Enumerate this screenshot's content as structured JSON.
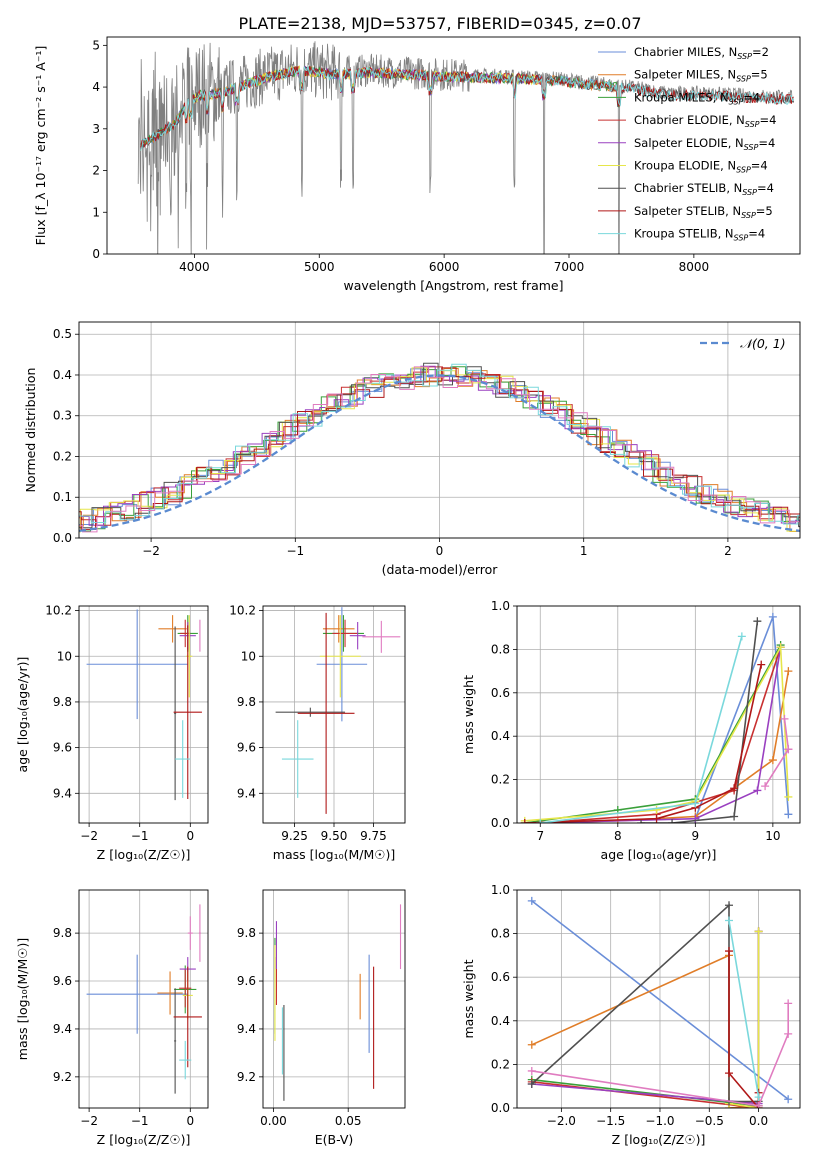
{
  "title": "PLATE=2138, MJD=53757, FIBERID=0345, z=0.07",
  "colors": {
    "chabrier_miles": "#6a8ed8",
    "salpeter_miles": "#e07d28",
    "kroupa_miles": "#3aa03a",
    "chabrier_elodie": "#c83030",
    "salpeter_elodie": "#9a40c0",
    "kroupa_elodie": "#e6e64a",
    "chabrier_stelib": "#505050",
    "salpeter_stelib": "#b01818",
    "kroupa_stelib": "#7ad8dc",
    "normal": "#5a8ad0",
    "pink": "#e07cc0",
    "data_gray": "#808080",
    "grid": "#b0b0b0"
  },
  "chart_data": [
    {
      "type": "line",
      "id": "spectrum",
      "xlabel": "wavelength [Angstrom, rest frame]",
      "ylabel": "Flux [f_λ 10⁻¹⁷ erg cm⁻² s⁻¹ A⁻¹]",
      "xlim": [
        3300,
        8850
      ],
      "ylim": [
        0,
        5.2
      ],
      "xticks": [
        4000,
        5000,
        6000,
        7000,
        8000
      ],
      "yticks": [
        0,
        1,
        2,
        3,
        4,
        5
      ],
      "grid": false,
      "legend_position": "top-right",
      "legend": [
        {
          "label": "Chabrier MILES, N",
          "sub": "SSP",
          "tail": "=2",
          "color": "chabrier_miles"
        },
        {
          "label": "Salpeter MILES, N",
          "sub": "SSP",
          "tail": "=5",
          "color": "salpeter_miles"
        },
        {
          "label": "Kroupa MILES, N",
          "sub": "SSP",
          "tail": "=4",
          "color": "kroupa_miles"
        },
        {
          "label": "Chabrier ELODIE, N",
          "sub": "SSP",
          "tail": "=4",
          "color": "chabrier_elodie"
        },
        {
          "label": "Salpeter ELODIE, N",
          "sub": "SSP",
          "tail": "=4",
          "color": "salpeter_elodie"
        },
        {
          "label": "Kroupa ELODIE, N",
          "sub": "SSP",
          "tail": "=4",
          "color": "kroupa_elodie"
        },
        {
          "label": "Chabrier STELIB, N",
          "sub": "SSP",
          "tail": "=4",
          "color": "chabrier_stelib"
        },
        {
          "label": "Salpeter STELIB, N",
          "sub": "SSP",
          "tail": "=5",
          "color": "salpeter_stelib"
        },
        {
          "label": "Kroupa STELIB, N",
          "sub": "SSP",
          "tail": "=4",
          "color": "kroupa_stelib"
        }
      ],
      "continuum": {
        "x": [
          3550,
          3650,
          3750,
          3850,
          3950,
          4050,
          4200,
          4400,
          4600,
          4850,
          5100,
          5400,
          5700,
          6000,
          6300,
          6600,
          6900,
          7200,
          7500,
          7800,
          8100,
          8400,
          8800
        ],
        "y": [
          2.6,
          2.8,
          3.0,
          3.2,
          3.7,
          3.85,
          3.9,
          4.1,
          4.3,
          4.45,
          4.35,
          4.4,
          4.35,
          4.3,
          4.28,
          4.25,
          4.2,
          4.1,
          4.0,
          3.85,
          3.85,
          3.8,
          3.75
        ]
      },
      "absorption_lines": [
        3934,
        3969,
        4102,
        4227,
        4340,
        4861,
        5175,
        5270,
        5890,
        6563,
        6800,
        7400
      ]
    },
    {
      "type": "line",
      "id": "residuals",
      "xlabel": "(data-model)/error",
      "ylabel": "Normed distribution",
      "xlim": [
        -2.5,
        2.5
      ],
      "ylim": [
        0,
        0.53
      ],
      "xticks": [
        -2,
        -1,
        0,
        1,
        2
      ],
      "yticks": [
        0.0,
        0.1,
        0.2,
        0.3,
        0.4,
        0.5
      ],
      "grid": true,
      "legend_position": "top-right",
      "legend": [
        {
          "label": "𝒩(0, 1)",
          "color": "normal",
          "style": "dashed"
        }
      ],
      "bin_width": 0.1,
      "series": [
        {
          "color": "chabrier_miles",
          "offset": 0.0
        },
        {
          "color": "salpeter_miles",
          "offset": 0.03
        },
        {
          "color": "kroupa_miles",
          "offset": -0.02
        },
        {
          "color": "chabrier_elodie",
          "offset": 0.02
        },
        {
          "color": "salpeter_elodie",
          "offset": -0.03
        },
        {
          "color": "kroupa_elodie",
          "offset": 0.01
        },
        {
          "color": "chabrier_stelib",
          "offset": -0.01
        },
        {
          "color": "salpeter_stelib",
          "offset": 0.015
        },
        {
          "color": "kroupa_stelib",
          "offset": -0.015
        },
        {
          "color": "pink",
          "offset": 0.025
        }
      ]
    },
    {
      "type": "scatter",
      "id": "age_vs_Z",
      "xlabel": "Z [log₁₀(Z/Z☉)]",
      "ylabel": "age  [log₁₀(age/yr)]",
      "xlim": [
        -2.2,
        0.35
      ],
      "ylim": [
        9.27,
        10.22
      ],
      "xticks": [
        -2,
        -1,
        0
      ],
      "yticks": [
        9.4,
        9.6,
        9.8,
        10.0,
        10.2
      ],
      "grid": true,
      "points": [
        {
          "color": "chabrier_miles",
          "x": -1.05,
          "xerr": 1.0,
          "y": 9.965,
          "yerr": 0.24
        },
        {
          "color": "salpeter_miles",
          "x": -0.35,
          "xerr": 0.28,
          "y": 10.12,
          "yerr": 0.06
        },
        {
          "color": "kroupa_miles",
          "x": -0.05,
          "xerr": 0.2,
          "y": 10.1,
          "yerr": 0.08
        },
        {
          "color": "chabrier_elodie",
          "x": -0.1,
          "xerr": 0.1,
          "y": 10.1,
          "yerr": 0.06
        },
        {
          "color": "salpeter_elodie",
          "x": -0.05,
          "xerr": 0.16,
          "y": 10.09,
          "yerr": 0.06
        },
        {
          "color": "kroupa_elodie",
          "x": -0.02,
          "xerr": 0.06,
          "y": 10.0,
          "yerr": 0.18
        },
        {
          "color": "chabrier_stelib",
          "x": -0.3,
          "xerr": 0.02,
          "y": 9.75,
          "yerr": 0.38
        },
        {
          "color": "salpeter_stelib",
          "x": -0.05,
          "xerr": 0.28,
          "y": 9.755,
          "yerr": 0.38
        },
        {
          "color": "kroupa_stelib",
          "x": -0.15,
          "xerr": 0.15,
          "y": 9.55,
          "yerr": 0.17
        },
        {
          "color": "pink",
          "x": 0.19,
          "xerr": 0.0,
          "y": 10.09,
          "yerr": 0.07
        }
      ]
    },
    {
      "type": "scatter",
      "id": "age_vs_mass",
      "xlabel": "mass [log₁₀(M/M☉)]",
      "ylabel": "",
      "xlim": [
        9.05,
        9.95
      ],
      "ylim": [
        9.27,
        10.22
      ],
      "xticks": [
        9.25,
        9.5,
        9.75
      ],
      "yticks": [
        9.4,
        9.6,
        9.8,
        10.0,
        10.2
      ],
      "xticklabels": [
        "9.25",
        "9.50",
        "9.75"
      ],
      "grid": true,
      "points": [
        {
          "color": "chabrier_miles",
          "x": 9.55,
          "xerr": 0.16,
          "y": 9.965,
          "yerr": 0.25
        },
        {
          "color": "salpeter_miles",
          "x": 9.53,
          "xerr": 0.1,
          "y": 10.12,
          "yerr": 0.06
        },
        {
          "color": "kroupa_miles",
          "x": 9.56,
          "xerr": 0.13,
          "y": 10.1,
          "yerr": 0.08
        },
        {
          "color": "chabrier_elodie",
          "x": 9.57,
          "xerr": 0.08,
          "y": 10.1,
          "yerr": 0.06
        },
        {
          "color": "salpeter_elodie",
          "x": 9.65,
          "xerr": 0.05,
          "y": 10.09,
          "yerr": 0.06
        },
        {
          "color": "kroupa_elodie",
          "x": 9.54,
          "xerr": 0.13,
          "y": 10.0,
          "yerr": 0.18
        },
        {
          "color": "chabrier_stelib",
          "x": 9.35,
          "xerr": 0.22,
          "y": 9.755,
          "yerr": 0.02
        },
        {
          "color": "salpeter_stelib",
          "x": 9.45,
          "xerr": 0.18,
          "y": 9.75,
          "yerr": 0.44
        },
        {
          "color": "kroupa_stelib",
          "x": 9.27,
          "xerr": 0.1,
          "y": 9.55,
          "yerr": 0.17
        },
        {
          "color": "pink",
          "x": 9.8,
          "xerr": 0.12,
          "y": 10.085,
          "yerr": 0.07
        }
      ]
    },
    {
      "type": "line",
      "id": "weight_vs_age",
      "xlabel": "age  [log₁₀(age/yr)]",
      "ylabel": "mass weight",
      "xlim": [
        6.7,
        10.35
      ],
      "ylim": [
        0,
        1.0
      ],
      "xticks": [
        7,
        8,
        9,
        10
      ],
      "yticks": [
        0.0,
        0.2,
        0.4,
        0.6,
        0.8,
        1.0
      ],
      "grid": true,
      "series": [
        {
          "color": "chabrier_miles",
          "x": [
            9.0,
            10.0,
            10.2
          ],
          "y": [
            0.02,
            0.95,
            0.04
          ]
        },
        {
          "color": "salpeter_miles",
          "x": [
            6.8,
            8.0,
            9.0,
            10.0,
            10.2
          ],
          "y": [
            0.0,
            0.01,
            0.03,
            0.29,
            0.7
          ]
        },
        {
          "color": "kroupa_miles",
          "x": [
            6.8,
            8.0,
            9.0,
            10.1
          ],
          "y": [
            0.0,
            0.06,
            0.11,
            0.82
          ]
        },
        {
          "color": "chabrier_elodie",
          "x": [
            7.0,
            8.5,
            9.5,
            10.1
          ],
          "y": [
            0.0,
            0.04,
            0.15,
            0.81
          ]
        },
        {
          "color": "salpeter_elodie",
          "x": [
            7.0,
            9.0,
            9.8,
            10.1
          ],
          "y": [
            0.0,
            0.02,
            0.15,
            0.81
          ]
        },
        {
          "color": "kroupa_elodie",
          "x": [
            6.8,
            8.5,
            9.0,
            10.1,
            10.2
          ],
          "y": [
            0.01,
            0.06,
            0.1,
            0.81,
            0.12
          ]
        },
        {
          "color": "chabrier_stelib",
          "x": [
            8.3,
            8.7,
            9.5,
            9.8
          ],
          "y": [
            0.0,
            0.0,
            0.03,
            0.93
          ]
        },
        {
          "color": "salpeter_stelib",
          "x": [
            6.8,
            8.5,
            9.0,
            9.5,
            9.85
          ],
          "y": [
            0.0,
            0.02,
            0.07,
            0.16,
            0.73
          ]
        },
        {
          "color": "kroupa_stelib",
          "x": [
            7.0,
            9.0,
            9.6
          ],
          "y": [
            0.0,
            0.09,
            0.86
          ]
        },
        {
          "color": "pink",
          "x": [
            9.9,
            10.2,
            10.15,
            10.2
          ],
          "y": [
            0.17,
            0.34,
            0.48,
            0.34
          ]
        }
      ]
    },
    {
      "type": "scatter",
      "id": "mass_vs_Z",
      "xlabel": "Z [log₁₀(Z/Z☉)]",
      "ylabel": "mass [log₁₀(M/M☉)]",
      "xlim": [
        -2.2,
        0.35
      ],
      "ylim": [
        9.07,
        9.98
      ],
      "xticks": [
        -2,
        -1,
        0
      ],
      "yticks": [
        9.2,
        9.4,
        9.6,
        9.8
      ],
      "grid": true,
      "points": [
        {
          "color": "chabrier_miles",
          "x": -1.05,
          "xerr": 1.0,
          "y": 9.545,
          "yerr": 0.165
        },
        {
          "color": "salpeter_miles",
          "x": -0.4,
          "xerr": 0.25,
          "y": 9.55,
          "yerr": 0.09
        },
        {
          "color": "kroupa_miles",
          "x": -0.1,
          "xerr": 0.22,
          "y": 9.565,
          "yerr": 0.1
        },
        {
          "color": "chabrier_elodie",
          "x": -0.1,
          "xerr": 0.12,
          "y": 9.57,
          "yerr": 0.08
        },
        {
          "color": "salpeter_elodie",
          "x": -0.05,
          "xerr": 0.16,
          "y": 9.65,
          "yerr": 0.05
        },
        {
          "color": "kroupa_elodie",
          "x": -0.05,
          "xerr": 0.1,
          "y": 9.54,
          "yerr": 0.1
        },
        {
          "color": "chabrier_stelib",
          "x": -0.3,
          "xerr": 0.02,
          "y": 9.35,
          "yerr": 0.22
        },
        {
          "color": "salpeter_stelib",
          "x": -0.05,
          "xerr": 0.28,
          "y": 9.45,
          "yerr": 0.21
        },
        {
          "color": "kroupa_stelib",
          "x": -0.1,
          "xerr": 0.12,
          "y": 9.27,
          "yerr": 0.08
        },
        {
          "color": "pink",
          "x": 0.0,
          "xerr": 0.05,
          "y": 9.8,
          "yerr": 0.07
        },
        {
          "color": "pink",
          "x": 0.19,
          "xerr": 0.02,
          "y": 9.8,
          "yerr": 0.12
        }
      ]
    },
    {
      "type": "scatter",
      "id": "mass_vs_ebv",
      "xlabel": "E(B-V)",
      "ylabel": "",
      "xlim": [
        -0.007,
        0.088
      ],
      "ylim": [
        9.07,
        9.98
      ],
      "xticks": [
        0.0,
        0.05
      ],
      "yticks": [
        9.2,
        9.4,
        9.6,
        9.8
      ],
      "xticklabels": [
        "0.00",
        "0.05"
      ],
      "grid": true,
      "points": [
        {
          "color": "chabrier_miles",
          "x": 0.064,
          "xerr": 0,
          "y": 9.505,
          "yerr": 0.205
        },
        {
          "color": "salpeter_miles",
          "x": 0.058,
          "xerr": 0,
          "y": 9.535,
          "yerr": 0.095
        },
        {
          "color": "kroupa_miles",
          "x": 0.001,
          "xerr": 0,
          "y": 9.58,
          "yerr": 0.2
        },
        {
          "color": "chabrier_elodie",
          "x": 0.002,
          "xerr": 0,
          "y": 9.6,
          "yerr": 0.1
        },
        {
          "color": "salpeter_elodie",
          "x": 0.002,
          "xerr": 0,
          "y": 9.75,
          "yerr": 0.1
        },
        {
          "color": "kroupa_elodie",
          "x": 0.001,
          "xerr": 0,
          "y": 9.55,
          "yerr": 0.2
        },
        {
          "color": "chabrier_stelib",
          "x": 0.007,
          "xerr": 0,
          "y": 9.3,
          "yerr": 0.2
        },
        {
          "color": "salpeter_stelib",
          "x": 0.067,
          "xerr": 0,
          "y": 9.405,
          "yerr": 0.255
        },
        {
          "color": "kroupa_stelib",
          "x": 0.006,
          "xerr": 0,
          "y": 9.35,
          "yerr": 0.14
        },
        {
          "color": "pink",
          "x": 0.085,
          "xerr": 0,
          "y": 9.785,
          "yerr": 0.135
        }
      ]
    },
    {
      "type": "line",
      "id": "weight_vs_Z",
      "xlabel": "Z [log₁₀(Z/Z☉)]",
      "ylabel": "mass weight",
      "xlim": [
        -2.45,
        0.42
      ],
      "ylim": [
        0,
        1.0
      ],
      "xticks": [
        -2.0,
        -1.5,
        -1.0,
        -0.5,
        0.0
      ],
      "yticks": [
        0.0,
        0.2,
        0.4,
        0.6,
        0.8,
        1.0
      ],
      "xticklabels": [
        "−2.0",
        "−1.5",
        "−1.0",
        "−0.5",
        "0.0"
      ],
      "grid": true,
      "series": [
        {
          "color": "chabrier_miles",
          "x": [
            -2.3,
            0.3
          ],
          "y": [
            0.95,
            0.04
          ]
        },
        {
          "color": "salpeter_miles",
          "x": [
            -2.3,
            -0.3,
            -0.3,
            0.0
          ],
          "y": [
            0.29,
            0.7,
            0.0,
            0.01
          ]
        },
        {
          "color": "kroupa_miles",
          "x": [
            -2.3,
            0.0,
            0.0
          ],
          "y": [
            0.13,
            0.01,
            0.81
          ]
        },
        {
          "color": "chabrier_elodie",
          "x": [
            -2.3,
            0.0,
            0.0
          ],
          "y": [
            0.12,
            0.0,
            0.81
          ]
        },
        {
          "color": "salpeter_elodie",
          "x": [
            -2.3,
            0.0,
            0.0
          ],
          "y": [
            0.11,
            0.02,
            0.81
          ]
        },
        {
          "color": "kroupa_elodie",
          "x": [
            -0.3,
            0.0,
            0.0
          ],
          "y": [
            0.02,
            0.0,
            0.81
          ]
        },
        {
          "color": "chabrier_stelib",
          "x": [
            -2.3,
            -0.3,
            -0.3,
            0.0
          ],
          "y": [
            0.11,
            0.93,
            0.03,
            0.03
          ]
        },
        {
          "color": "salpeter_stelib",
          "x": [
            -0.3,
            -0.3,
            0.0,
            0.0
          ],
          "y": [
            0.72,
            0.16,
            0.0,
            0.07
          ]
        },
        {
          "color": "kroupa_stelib",
          "x": [
            -0.3,
            0.0
          ],
          "y": [
            0.86,
            0.05
          ]
        },
        {
          "color": "pink",
          "x": [
            -2.3,
            0.0,
            0.3,
            0.3
          ],
          "y": [
            0.17,
            0.01,
            0.34,
            0.48
          ]
        }
      ]
    }
  ]
}
